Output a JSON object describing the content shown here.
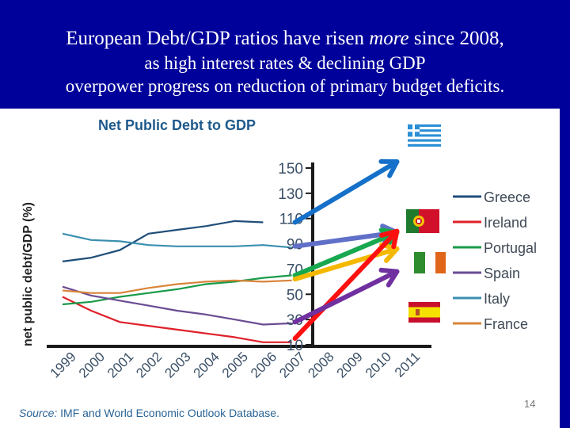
{
  "slide": {
    "title_line1_a": "European Debt/GDP ratios have risen ",
    "title_line1_em": "more",
    "title_line1_b": " since 2008,",
    "title_line2": "as high interest rates & declining GDP",
    "title_line3": "overpower progress on reduction of primary budget deficits.",
    "page_number": "14",
    "source_prefix": "Source:",
    "source_text": " IMF and World Economic Outlook Database."
  },
  "colors": {
    "background": "#00009a",
    "panel": "#ffffff",
    "axis": "#1a1a1a",
    "chart_title": "#1f5a8c"
  },
  "chart_data": {
    "type": "line",
    "title": "Net Public Debt to GDP",
    "xlabel": "",
    "ylabel": "net public debt/GDP (%)",
    "x": [
      "1999",
      "2000",
      "2001",
      "2002",
      "2003",
      "2004",
      "2005",
      "2006",
      "2007",
      "2008",
      "2009",
      "2010",
      "2011"
    ],
    "yticks": [
      10,
      30,
      50,
      70,
      90,
      110,
      130,
      150
    ],
    "ylim": [
      10,
      150
    ],
    "grid": false,
    "legend_position": "right",
    "series": [
      {
        "name": "Greece",
        "color": "#1f4e79",
        "values": [
          76,
          79,
          85,
          98,
          101,
          104,
          108,
          107,
          null,
          null,
          null,
          null,
          null
        ]
      },
      {
        "name": "Ireland",
        "color": "#e0202a",
        "values": [
          48,
          37,
          28,
          25,
          22,
          19,
          16,
          12,
          12,
          null,
          null,
          null,
          null
        ]
      },
      {
        "name": "Portugal",
        "color": "#1a9a4a",
        "values": [
          42,
          44,
          48,
          51,
          54,
          58,
          60,
          63,
          65,
          null,
          null,
          null,
          null
        ]
      },
      {
        "name": "Spain",
        "color": "#6a4c93",
        "values": [
          56,
          49,
          45,
          41,
          37,
          34,
          30,
          26,
          27,
          null,
          null,
          null,
          null
        ]
      },
      {
        "name": "Italy",
        "color": "#3a8fb0",
        "values": [
          98,
          93,
          92,
          89,
          88,
          88,
          88,
          89,
          87,
          null,
          null,
          null,
          null
        ]
      },
      {
        "name": "France",
        "color": "#d9843a",
        "values": [
          53,
          51,
          51,
          55,
          58,
          60,
          61,
          60,
          61,
          null,
          null,
          null,
          null
        ]
      }
    ],
    "annotations": [
      {
        "label": "Greece arrow",
        "color": "#1470c8",
        "from": [
          "2007",
          107
        ],
        "to": [
          "2011",
          155
        ],
        "flag": "Greece"
      },
      {
        "label": "Italy arrow",
        "color": "#6070c8",
        "from": [
          "2007",
          88
        ],
        "to": [
          "2011",
          99
        ],
        "flag": "Italy"
      },
      {
        "label": "Portugal arrow",
        "color": "#18a850",
        "from": [
          "2007",
          65
        ],
        "to": [
          "2011",
          99
        ],
        "flag": "Portugal"
      },
      {
        "label": "France arrow",
        "color": "#f5b800",
        "from": [
          "2007",
          62
        ],
        "to": [
          "2011",
          86
        ],
        "flag": "France"
      },
      {
        "label": "Ireland arrow",
        "color": "#ff1010",
        "from": [
          "2007",
          15
        ],
        "to": [
          "2011",
          100
        ],
        "flag": "Ireland"
      },
      {
        "label": "Spain arrow",
        "color": "#7030a0",
        "from": [
          "2007",
          28
        ],
        "to": [
          "2011",
          68
        ],
        "flag": "Spain"
      }
    ]
  }
}
